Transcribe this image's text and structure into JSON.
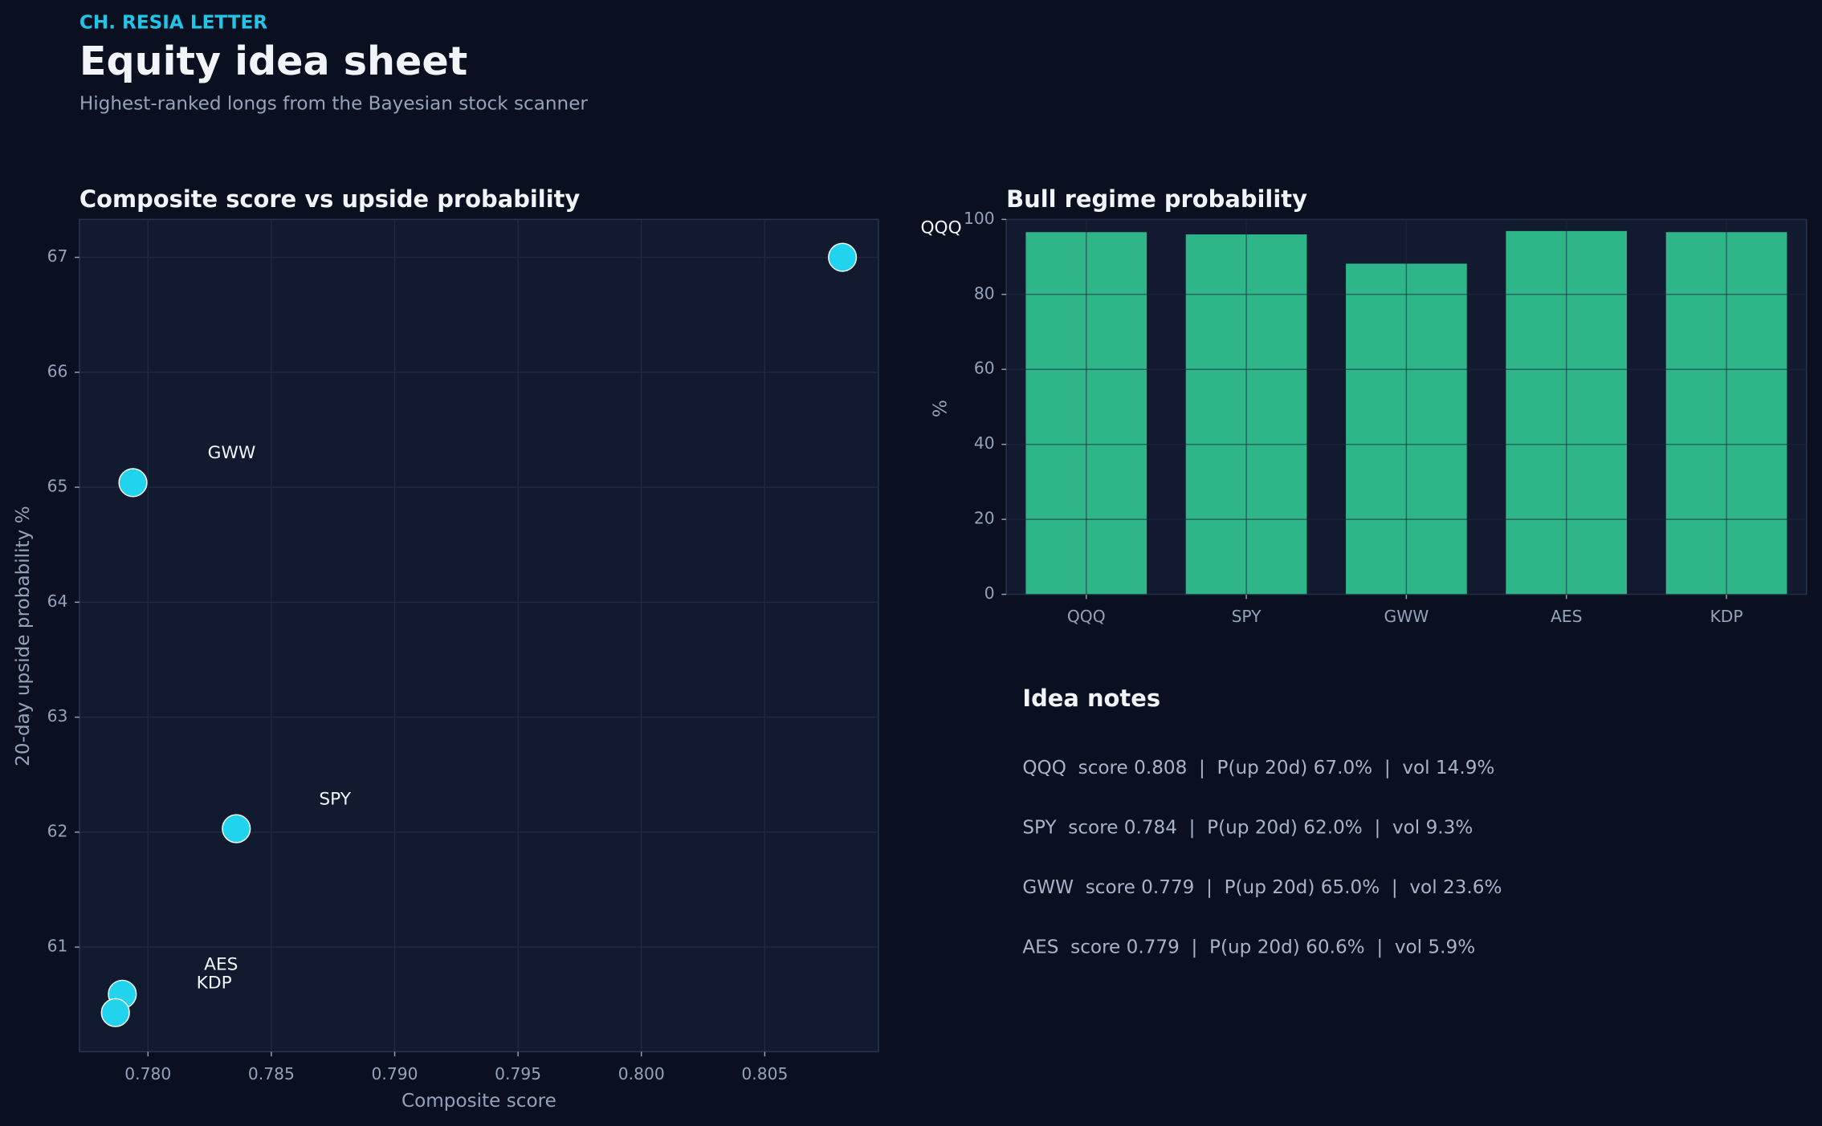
{
  "header": {
    "kicker": "CH. RESIA LETTER",
    "title": "Equity idea sheet",
    "subtitle": "Highest-ranked longs from the Bayesian stock scanner"
  },
  "chart_data": [
    {
      "type": "scatter",
      "title": "Composite score vs upside probability",
      "x_label": "Composite score",
      "y_label": "20-day upside probability %",
      "labels": [
        "QQQ",
        "SPY",
        "GWW",
        "AES",
        "KDP"
      ],
      "x": [
        0.80815,
        0.78358,
        0.77939,
        0.77896,
        0.77868
      ],
      "values": [
        67.0,
        62.03,
        65.04,
        60.59,
        60.43
      ],
      "color": "#22d3ee",
      "xlim": [
        0.77722,
        0.80961
      ],
      "ylim": [
        60.09,
        67.33
      ],
      "xticks": [
        {
          "value": 0.78,
          "label": "0.780"
        },
        {
          "value": 0.785,
          "label": "0.785"
        },
        {
          "value": 0.79,
          "label": "0.790"
        },
        {
          "value": 0.795,
          "label": "0.795"
        },
        {
          "value": 0.8,
          "label": "0.800"
        },
        {
          "value": 0.805,
          "label": "0.805"
        }
      ],
      "yticks": [
        61,
        62,
        63,
        64,
        65,
        66,
        67
      ],
      "grid": true
    },
    {
      "type": "bar",
      "title": "Bull regime probability",
      "y_label": "%",
      "categories": [
        "QQQ",
        "SPY",
        "GWW",
        "AES",
        "KDP"
      ],
      "values": [
        96.6,
        96.0,
        88.2,
        96.9,
        96.6
      ],
      "color": "#2eb689",
      "ylim": [
        0,
        100
      ],
      "yticks": [
        0,
        20,
        40,
        60,
        80,
        100
      ],
      "grid": true
    }
  ],
  "notes": {
    "title": "Idea notes",
    "lines": [
      "QQQ  score 0.808  |  P(up 20d) 67.0%  |  vol 14.9%",
      "SPY  score 0.784  |  P(up 20d) 62.0%  |  vol 9.3%",
      "GWW  score 0.779  |  P(up 20d) 65.0%  |  vol 23.6%",
      "AES  score 0.779  |  P(up 20d) 60.6%  |  vol 5.9%"
    ]
  }
}
